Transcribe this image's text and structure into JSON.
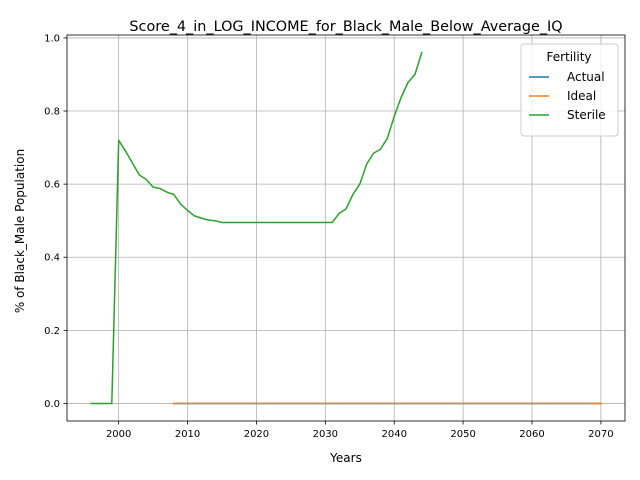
{
  "chart_data": {
    "type": "line",
    "title": "Score_4_in_LOG_INCOME_for_Black_Male_Below_Average_IQ",
    "xlabel": "Years",
    "ylabel": "% of Black_Male Population",
    "xlim": [
      1992.5,
      2073.5
    ],
    "ylim": [
      -0.048,
      1.008
    ],
    "x_ticks": [
      2000,
      2010,
      2020,
      2030,
      2040,
      2050,
      2060,
      2070
    ],
    "y_ticks": [
      0.0,
      0.2,
      0.4,
      0.6,
      0.8,
      1.0
    ],
    "x_tick_labels": [
      "2000",
      "2010",
      "2020",
      "2030",
      "2040",
      "2050",
      "2060",
      "2070"
    ],
    "y_tick_labels": [
      "0.0",
      "0.2",
      "0.4",
      "0.6",
      "0.8",
      "1.0"
    ],
    "grid": true,
    "legend": {
      "title": "Fertility",
      "placement": "top-right"
    },
    "series": [
      {
        "name": "Actual",
        "color": "#1f77b4",
        "x": [
          2008,
          2070
        ],
        "y": [
          0.0,
          0.0
        ]
      },
      {
        "name": "Ideal",
        "color": "#ff7f0e",
        "x": [
          2008,
          2070
        ],
        "y": [
          0.0,
          0.0
        ]
      },
      {
        "name": "Sterile",
        "color": "#2ca02c",
        "x": [
          1996,
          1997,
          1998,
          1999,
          2000,
          2001,
          2002,
          2003,
          2004,
          2005,
          2006,
          2007,
          2008,
          2009,
          2010,
          2011,
          2012,
          2013,
          2014,
          2015,
          2016,
          2017,
          2018,
          2019,
          2020,
          2021,
          2022,
          2023,
          2024,
          2025,
          2026,
          2027,
          2028,
          2029,
          2030,
          2031,
          2032,
          2033,
          2034,
          2035,
          2036,
          2037,
          2038,
          2039,
          2040,
          2041,
          2042,
          2043,
          2044
        ],
        "y": [
          0.0,
          0.0,
          0.0,
          0.0,
          0.72,
          0.69,
          0.658,
          0.625,
          0.613,
          0.592,
          0.588,
          0.578,
          0.572,
          0.545,
          0.528,
          0.513,
          0.507,
          0.502,
          0.5,
          0.495,
          0.495,
          0.495,
          0.495,
          0.495,
          0.495,
          0.495,
          0.495,
          0.495,
          0.495,
          0.495,
          0.495,
          0.495,
          0.495,
          0.495,
          0.495,
          0.495,
          0.52,
          0.532,
          0.572,
          0.6,
          0.655,
          0.685,
          0.695,
          0.725,
          0.785,
          0.837,
          0.878,
          0.9,
          0.96
        ]
      }
    ]
  }
}
